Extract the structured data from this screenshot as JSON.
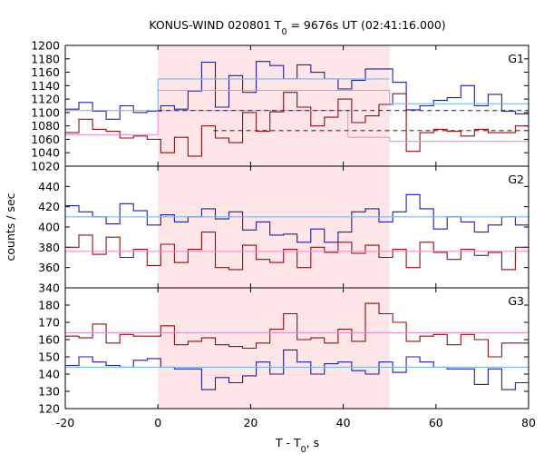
{
  "chart_data": {
    "type": "line",
    "title": "KONUS-WIND 020801 T",
    "title_sub": "0",
    "title_rest": " = 9676s UT (02:41:16.000)",
    "ylabel": "counts / sec",
    "xlabel": "T - T",
    "xlabel_sub": "0",
    "xlabel_rest": ", s",
    "xlim": [
      -20,
      80
    ],
    "x_ticks": [
      -20,
      0,
      20,
      40,
      60,
      80
    ],
    "highlight_interval": [
      0,
      50
    ],
    "bin_width": 2.944,
    "bin_start": -20,
    "panels": [
      {
        "label": "G1",
        "ylim": [
          1020,
          1200
        ],
        "y_ticks": [
          1020,
          1040,
          1060,
          1080,
          1100,
          1120,
          1140,
          1160,
          1180,
          1200
        ],
        "series": [
          {
            "color": "#1f1fa0",
            "values": [
              1105,
              1115,
              1102,
              1090,
              1110,
              1100,
              1102,
              1110,
              1105,
              1132,
              1175,
              1108,
              1155,
              1130,
              1176,
              1170,
              1150,
              1171,
              1160,
              1150,
              1135,
              1148,
              1165,
              1165,
              1145,
              1104,
              1110,
              1118,
              1122,
              1140,
              1110,
              1127,
              1102,
              1098,
              1098,
              1110,
              1098
            ]
          },
          {
            "color": "#8b1010",
            "values": [
              1070,
              1090,
              1075,
              1072,
              1062,
              1065,
              1060,
              1040,
              1063,
              1035,
              1080,
              1062,
              1055,
              1100,
              1072,
              1101,
              1130,
              1108,
              1080,
              1093,
              1120,
              1085,
              1095,
              1112,
              1128,
              1042,
              1070,
              1075,
              1072,
              1065,
              1075,
              1070,
              1070,
              1080,
              1062,
              1080,
              1092
            ]
          },
          {
            "color": "#7cb8e8",
            "segments": [
              [
                -20,
                0,
                1103
              ],
              [
                0,
                50,
                1150
              ],
              [
                0,
                50,
                1133
              ],
              [
                50,
                80,
                1113
              ]
            ]
          },
          {
            "color": "#f090d0",
            "segments": [
              [
                -20,
                0,
                1067
              ],
              [
                0,
                12,
                1103
              ],
              [
                12,
                41,
                1103
              ],
              [
                41,
                50,
                1063
              ],
              [
                50,
                80,
                1057
              ]
            ]
          },
          {
            "color": "#2a2ab0",
            "dashed": true,
            "segments": [
              [
                0,
                80,
                1103
              ]
            ]
          },
          {
            "color": "#8b1010",
            "dashed": true,
            "segments": [
              [
                12,
                80,
                1073
              ]
            ]
          }
        ]
      },
      {
        "label": "G2",
        "ylim": [
          340,
          460
        ],
        "y_ticks": [
          340,
          360,
          380,
          400,
          420,
          440
        ],
        "series": [
          {
            "color": "#1f1fa0",
            "values": [
              421,
              415,
              410,
              403,
              423,
              416,
              402,
              412,
              405,
              410,
              418,
              408,
              415,
              397,
              405,
              392,
              393,
              385,
              398,
              385,
              395,
              415,
              418,
              405,
              415,
              432,
              418,
              398,
              410,
              405,
              395,
              402,
              410,
              402,
              406,
              413,
              403,
              386
            ]
          },
          {
            "color": "#8b1010",
            "values": [
              380,
              392,
              373,
              390,
              370,
              378,
              362,
              383,
              365,
              378,
              395,
              360,
              358,
              382,
              368,
              365,
              378,
              360,
              380,
              375,
              385,
              374,
              382,
              370,
              378,
              360,
              385,
              375,
              368,
              378,
              372,
              375,
              358,
              380,
              388,
              378,
              368,
              375
            ]
          },
          {
            "color": "#7cb8e8",
            "segments": [
              [
                -20,
                80,
                410
              ]
            ]
          },
          {
            "color": "#f090d0",
            "segments": [
              [
                -20,
                80,
                376
              ]
            ]
          }
        ]
      },
      {
        "label": "G3",
        "ylim": [
          120,
          190
        ],
        "y_ticks": [
          120,
          130,
          140,
          150,
          160,
          170,
          180
        ],
        "series": [
          {
            "color": "#1f1fa0",
            "values": [
              145,
              150,
              147,
              145,
              144,
              148,
              149,
              144,
              143,
              143,
              131,
              138,
              135,
              139,
              147,
              140,
              154,
              147,
              140,
              146,
              147,
              142,
              140,
              147,
              141,
              150,
              147,
              144,
              143,
              143,
              134,
              143,
              131,
              135,
              140,
              137,
              133,
              142
            ]
          },
          {
            "color": "#8b1010",
            "values": [
              162,
              161,
              169,
              158,
              163,
              162,
              162,
              168,
              157,
              159,
              161,
              157,
              156,
              155,
              158,
              166,
              175,
              160,
              161,
              158,
              166,
              159,
              181,
              175,
              170,
              159,
              162,
              163,
              157,
              163,
              160,
              150,
              158,
              158,
              162,
              157,
              170,
              165
            ]
          },
          {
            "color": "#7cb8e8",
            "segments": [
              [
                -20,
                80,
                144
              ]
            ]
          },
          {
            "color": "#f090d0",
            "segments": [
              [
                -20,
                80,
                164
              ]
            ]
          }
        ]
      }
    ]
  }
}
